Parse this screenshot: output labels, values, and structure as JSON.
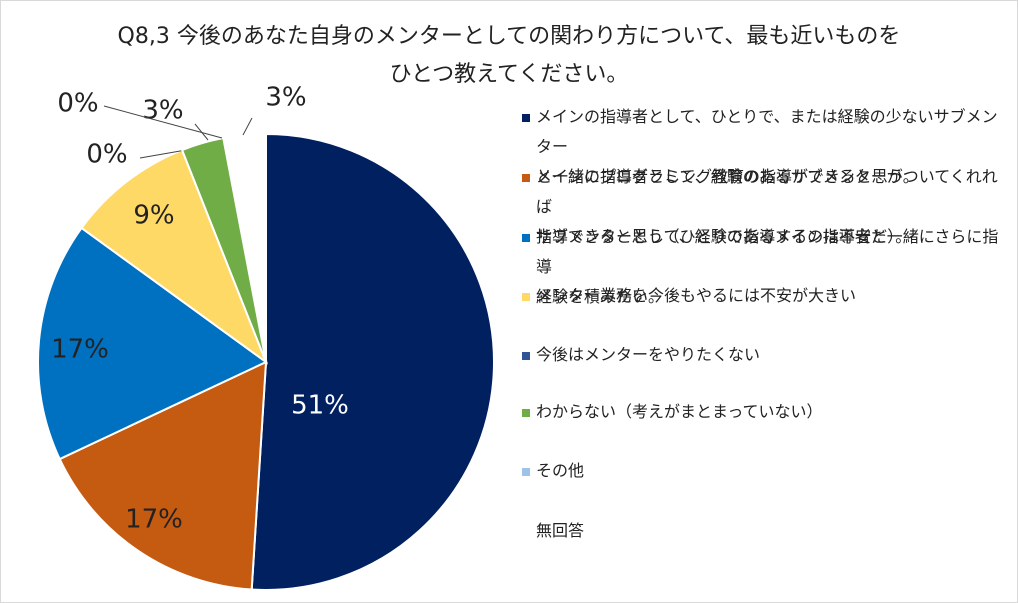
{
  "title": {
    "line1": "Q8,3 今後のあなた自身のメンターとしての関わり方について、最も近いものを",
    "line2": "ひとつ教えてください。"
  },
  "chart_data": {
    "type": "pie",
    "title": "Q8,3 今後のあなた自身のメンターとしての関わり方について、最も近いものをひとつ教えてください。",
    "legend_position": "right",
    "slices": [
      {
        "label": "メインの指導者として、ひとりで、または経験の少ないサブメンターと一緒にプログラミング教育の指導ができると思う。",
        "value": 51,
        "value_label": "51%",
        "color": "#002060"
      },
      {
        "label": "メインの指導者として、経験のあるサブメンターがついてくれれば指導できると思う（ひとりで指導するのは不安だ）。",
        "value": 17,
        "value_label": "17%",
        "color": "#C55A11"
      },
      {
        "label": "サブメンターとして、経験のあるメイン指導者と一緒にさらに指導経験を積みたい。",
        "value": 17,
        "value_label": "17%",
        "color": "#0070C0"
      },
      {
        "label": "メンター業務を今後もやるには不安が大きい",
        "value": 9,
        "value_label": "9%",
        "color": "#FFD966"
      },
      {
        "label": "今後はメンターをやりたくない",
        "value": 0,
        "value_label": "0%",
        "color": "#2F5597"
      },
      {
        "label": "わからない（考えがまとまっていない）",
        "value": 3,
        "value_label": "3%",
        "color": "#70AD47"
      },
      {
        "label": "その他",
        "value": 0,
        "value_label": "0%",
        "color": "#9DC3E6"
      },
      {
        "label": "無回答",
        "value": 3,
        "value_label": "3%",
        "color": "#ffffff"
      }
    ]
  },
  "legend": {
    "items": [
      {
        "line1": "メインの指導者として、ひとりで、または経験の少ないサブメンター",
        "line2": "と一緒にプログラミング教育の指導ができると思う。",
        "color": "#002060"
      },
      {
        "line1": "メインの指導者として、経験のあるサブメンターがついてくれれば",
        "line2": "指導できると思う（ひとりで指導するのは不安だ）。",
        "color": "#C55A11"
      },
      {
        "line1": "サブメンターとして、経験のあるメイン指導者と一緒にさらに指導",
        "line2": "経験を積みたい。",
        "color": "#0070C0"
      },
      {
        "line1": "メンター業務を今後もやるには不安が大きい",
        "line2": "",
        "color": "#FFD966"
      },
      {
        "line1": "今後はメンターをやりたくない",
        "line2": "",
        "color": "#2F5597"
      },
      {
        "line1": "わからない（考えがまとまっていない）",
        "line2": "",
        "color": "#70AD47"
      },
      {
        "line1": "その他",
        "line2": "",
        "color": "#9DC3E6"
      },
      {
        "line1": "無回答",
        "line2": "",
        "color": "#ffffff"
      }
    ]
  }
}
